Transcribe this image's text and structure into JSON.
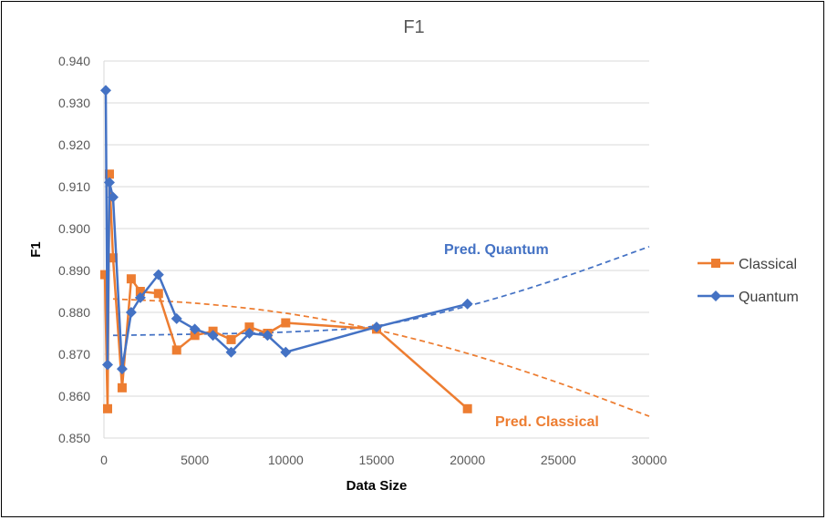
{
  "chart_data": {
    "type": "line",
    "title": "F1",
    "xlabel": "Data Size",
    "ylabel": "F1",
    "xlim": [
      0,
      30000
    ],
    "ylim": [
      0.85,
      0.94
    ],
    "x_ticks": [
      "0",
      "5000",
      "10000",
      "15000",
      "20000",
      "25000",
      "30000"
    ],
    "y_ticks": [
      "0.850",
      "0.860",
      "0.870",
      "0.880",
      "0.890",
      "0.900",
      "0.910",
      "0.920",
      "0.930",
      "0.940"
    ],
    "x_tick_values": [
      0,
      5000,
      10000,
      15000,
      20000,
      25000,
      30000
    ],
    "y_tick_values": [
      0.85,
      0.86,
      0.87,
      0.88,
      0.89,
      0.9,
      0.91,
      0.92,
      0.93,
      0.94
    ],
    "grid": true,
    "legend_position": "right",
    "series": [
      {
        "name": "Classical",
        "color": "#ED7D31",
        "marker": "square",
        "x": [
          50,
          200,
          300,
          500,
          1000,
          1500,
          2000,
          3000,
          4000,
          5000,
          6000,
          7000,
          8000,
          9000,
          10000,
          15000,
          20000
        ],
        "y": [
          0.889,
          0.857,
          0.913,
          0.893,
          0.862,
          0.888,
          0.885,
          0.8845,
          0.871,
          0.8745,
          0.8755,
          0.8735,
          0.8765,
          0.875,
          0.8775,
          0.876,
          0.857
        ]
      },
      {
        "name": "Quantum",
        "color": "#4472C4",
        "marker": "diamond",
        "x": [
          100,
          200,
          300,
          500,
          1000,
          1500,
          2000,
          3000,
          4000,
          5000,
          6000,
          7000,
          8000,
          9000,
          10000,
          15000,
          20000
        ],
        "y": [
          0.933,
          0.8675,
          0.911,
          0.9075,
          0.8665,
          0.88,
          0.8835,
          0.889,
          0.8785,
          0.876,
          0.8745,
          0.8705,
          0.875,
          0.8745,
          0.8705,
          0.8765,
          0.882
        ]
      }
    ],
    "trendlines": [
      {
        "label": "Pred. Quantum",
        "color": "#4472C4",
        "x": [
          500,
          5000,
          10000,
          15000,
          20000,
          25000,
          30000
        ],
        "y": [
          0.8745,
          0.8748,
          0.8753,
          0.8768,
          0.8815,
          0.888,
          0.8957
        ]
      },
      {
        "label": "Pred. Classical",
        "color": "#ED7D31",
        "x": [
          500,
          5000,
          10000,
          15000,
          20000,
          25000,
          30000
        ],
        "y": [
          0.8832,
          0.8822,
          0.8798,
          0.8758,
          0.8702,
          0.8632,
          0.8552
        ]
      }
    ]
  }
}
